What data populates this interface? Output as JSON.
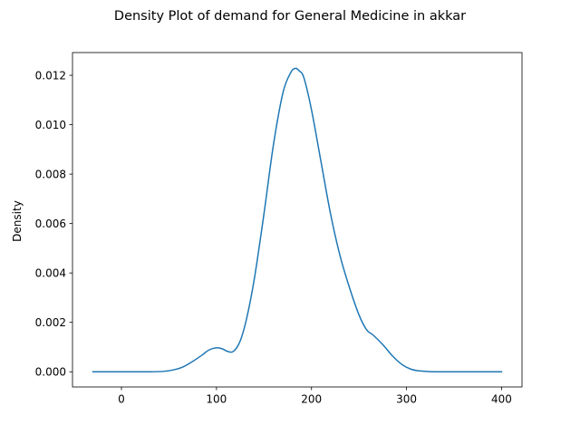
{
  "chart_data": {
    "type": "line",
    "title": "Density Plot of demand for General Medicine in akkar",
    "xlabel": "",
    "ylabel": "Density",
    "xlim": [
      -51.5,
      421.5
    ],
    "ylim": [
      -0.000615,
      0.01292
    ],
    "xticks": [
      0,
      100,
      200,
      300,
      400
    ],
    "yticks": [
      0.0,
      0.002,
      0.004,
      0.006,
      0.008,
      0.01,
      0.012
    ],
    "xtick_labels": [
      "0",
      "100",
      "200",
      "300",
      "400"
    ],
    "ytick_labels": [
      "0.000",
      "0.002",
      "0.004",
      "0.006",
      "0.008",
      "0.010",
      "0.012"
    ],
    "grid": false,
    "legend": "none",
    "series": [
      {
        "color": "#1f77b4",
        "x": [
          -30,
          0,
          30,
          45,
          55,
          65,
          75,
          85,
          92,
          100,
          106,
          112,
          118,
          125,
          132,
          140,
          150,
          160,
          170,
          178,
          183,
          187,
          192,
          200,
          210,
          220,
          230,
          240,
          250,
          258,
          265,
          275,
          285,
          295,
          305,
          315,
          330,
          360,
          400
        ],
        "y": [
          0.0,
          0.0,
          0.0,
          2e-05,
          8e-05,
          0.0002,
          0.00042,
          0.00068,
          0.00088,
          0.00097,
          0.00093,
          0.00082,
          0.00083,
          0.00125,
          0.0022,
          0.0038,
          0.0064,
          0.0092,
          0.0113,
          0.0121,
          0.01228,
          0.01218,
          0.0119,
          0.0106,
          0.0085,
          0.0064,
          0.0047,
          0.0034,
          0.0023,
          0.0017,
          0.00148,
          0.0011,
          0.00065,
          0.0003,
          0.0001,
          3e-05,
          0.0,
          0.0,
          0.0
        ]
      }
    ]
  }
}
